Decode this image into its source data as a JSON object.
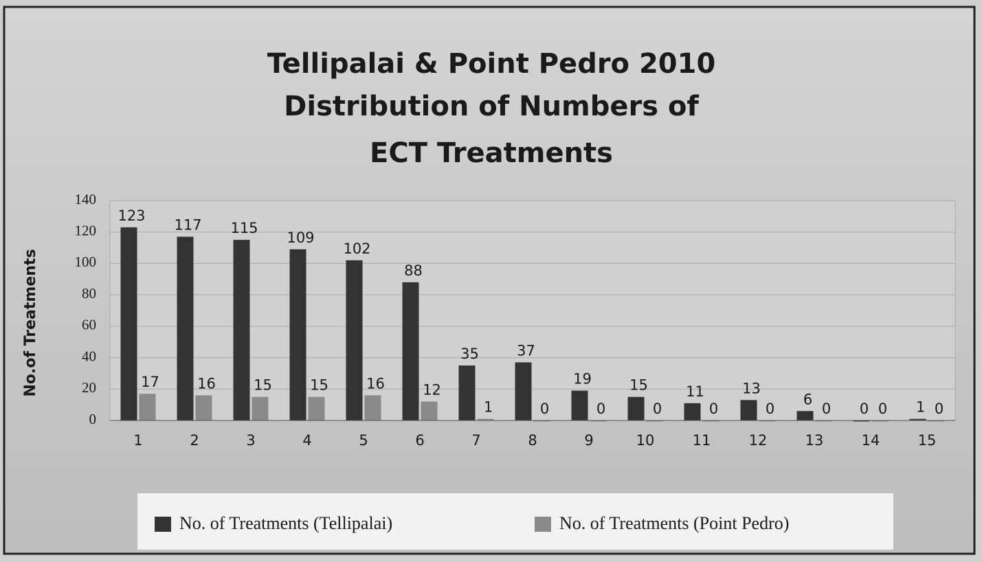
{
  "chart_data": {
    "type": "bar",
    "title": [
      "Tellipalai & Point Pedro 2010",
      "Distribution of Numbers of",
      "ECT Treatments"
    ],
    "y_label": "No.of Treatments",
    "categories": [
      "1",
      "2",
      "3",
      "4",
      "5",
      "6",
      "7",
      "8",
      "9",
      "10",
      "11",
      "12",
      "13",
      "14",
      "15"
    ],
    "series": [
      {
        "name": "No. of Treatments (Tellipalai)",
        "color": "#333333",
        "values": [
          123,
          117,
          115,
          109,
          102,
          88,
          35,
          37,
          19,
          15,
          11,
          13,
          6,
          0,
          1
        ]
      },
      {
        "name": "No. of Treatments (Point Pedro)",
        "color": "#8a8a8a",
        "values": [
          17,
          16,
          15,
          15,
          16,
          12,
          1,
          0,
          0,
          0,
          0,
          0,
          0,
          0,
          0
        ]
      }
    ],
    "ylim": [
      0,
      140
    ],
    "yticks": [
      0,
      20,
      40,
      60,
      80,
      100,
      120,
      140
    ],
    "grid": true,
    "legend": "bottom"
  }
}
